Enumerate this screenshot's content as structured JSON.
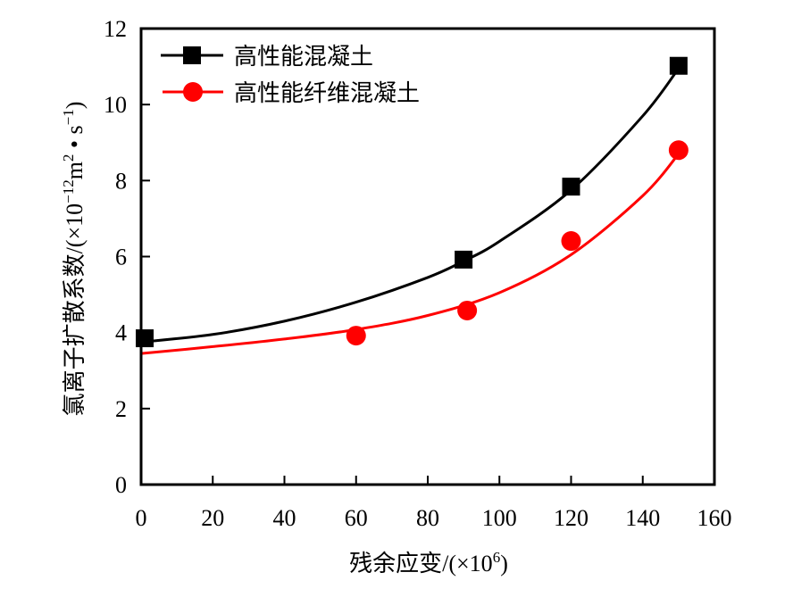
{
  "chart_data": {
    "type": "scatter",
    "title": "",
    "xlabel": "残余应变/(×10",
    "xlabel_sup": "6",
    "xlabel_end": ")",
    "ylabel": "氯离子扩散系数/(×10",
    "ylabel_sup1": "−12",
    "ylabel_mid": "m",
    "ylabel_sup2": "2",
    "ylabel_mid2": " • s",
    "ylabel_sup3": "−1",
    "ylabel_end": ")",
    "xlim": [
      0,
      160
    ],
    "ylim": [
      0,
      12
    ],
    "xticks": [
      "0",
      "20",
      "40",
      "60",
      "80",
      "100",
      "120",
      "140",
      "160"
    ],
    "yticks": [
      "0",
      "2",
      "4",
      "6",
      "8",
      "10",
      "12"
    ],
    "grid": false,
    "legend_position": "top-left",
    "series": [
      {
        "name": "高性能混凝土",
        "color": "#000000",
        "marker": "square",
        "points": [
          [
            1,
            3.85
          ],
          [
            90,
            5.92
          ],
          [
            120,
            7.84
          ],
          [
            150,
            11.02
          ]
        ],
        "fit_curve": [
          [
            0,
            3.75
          ],
          [
            20,
            3.95
          ],
          [
            40,
            4.3
          ],
          [
            60,
            4.8
          ],
          [
            80,
            5.45
          ],
          [
            90,
            5.88
          ],
          [
            100,
            6.4
          ],
          [
            120,
            7.75
          ],
          [
            140,
            9.7
          ],
          [
            150,
            10.95
          ]
        ]
      },
      {
        "name": "高性能纤维混凝土",
        "color": "#ff0000",
        "marker": "circle",
        "points": [
          [
            60,
            3.92
          ],
          [
            91,
            4.58
          ],
          [
            120,
            6.41
          ],
          [
            150,
            8.8
          ]
        ],
        "fit_curve": [
          [
            0,
            3.45
          ],
          [
            20,
            3.63
          ],
          [
            40,
            3.83
          ],
          [
            60,
            4.08
          ],
          [
            80,
            4.45
          ],
          [
            100,
            5.05
          ],
          [
            120,
            6.05
          ],
          [
            140,
            7.6
          ],
          [
            150,
            8.7
          ]
        ]
      }
    ]
  }
}
